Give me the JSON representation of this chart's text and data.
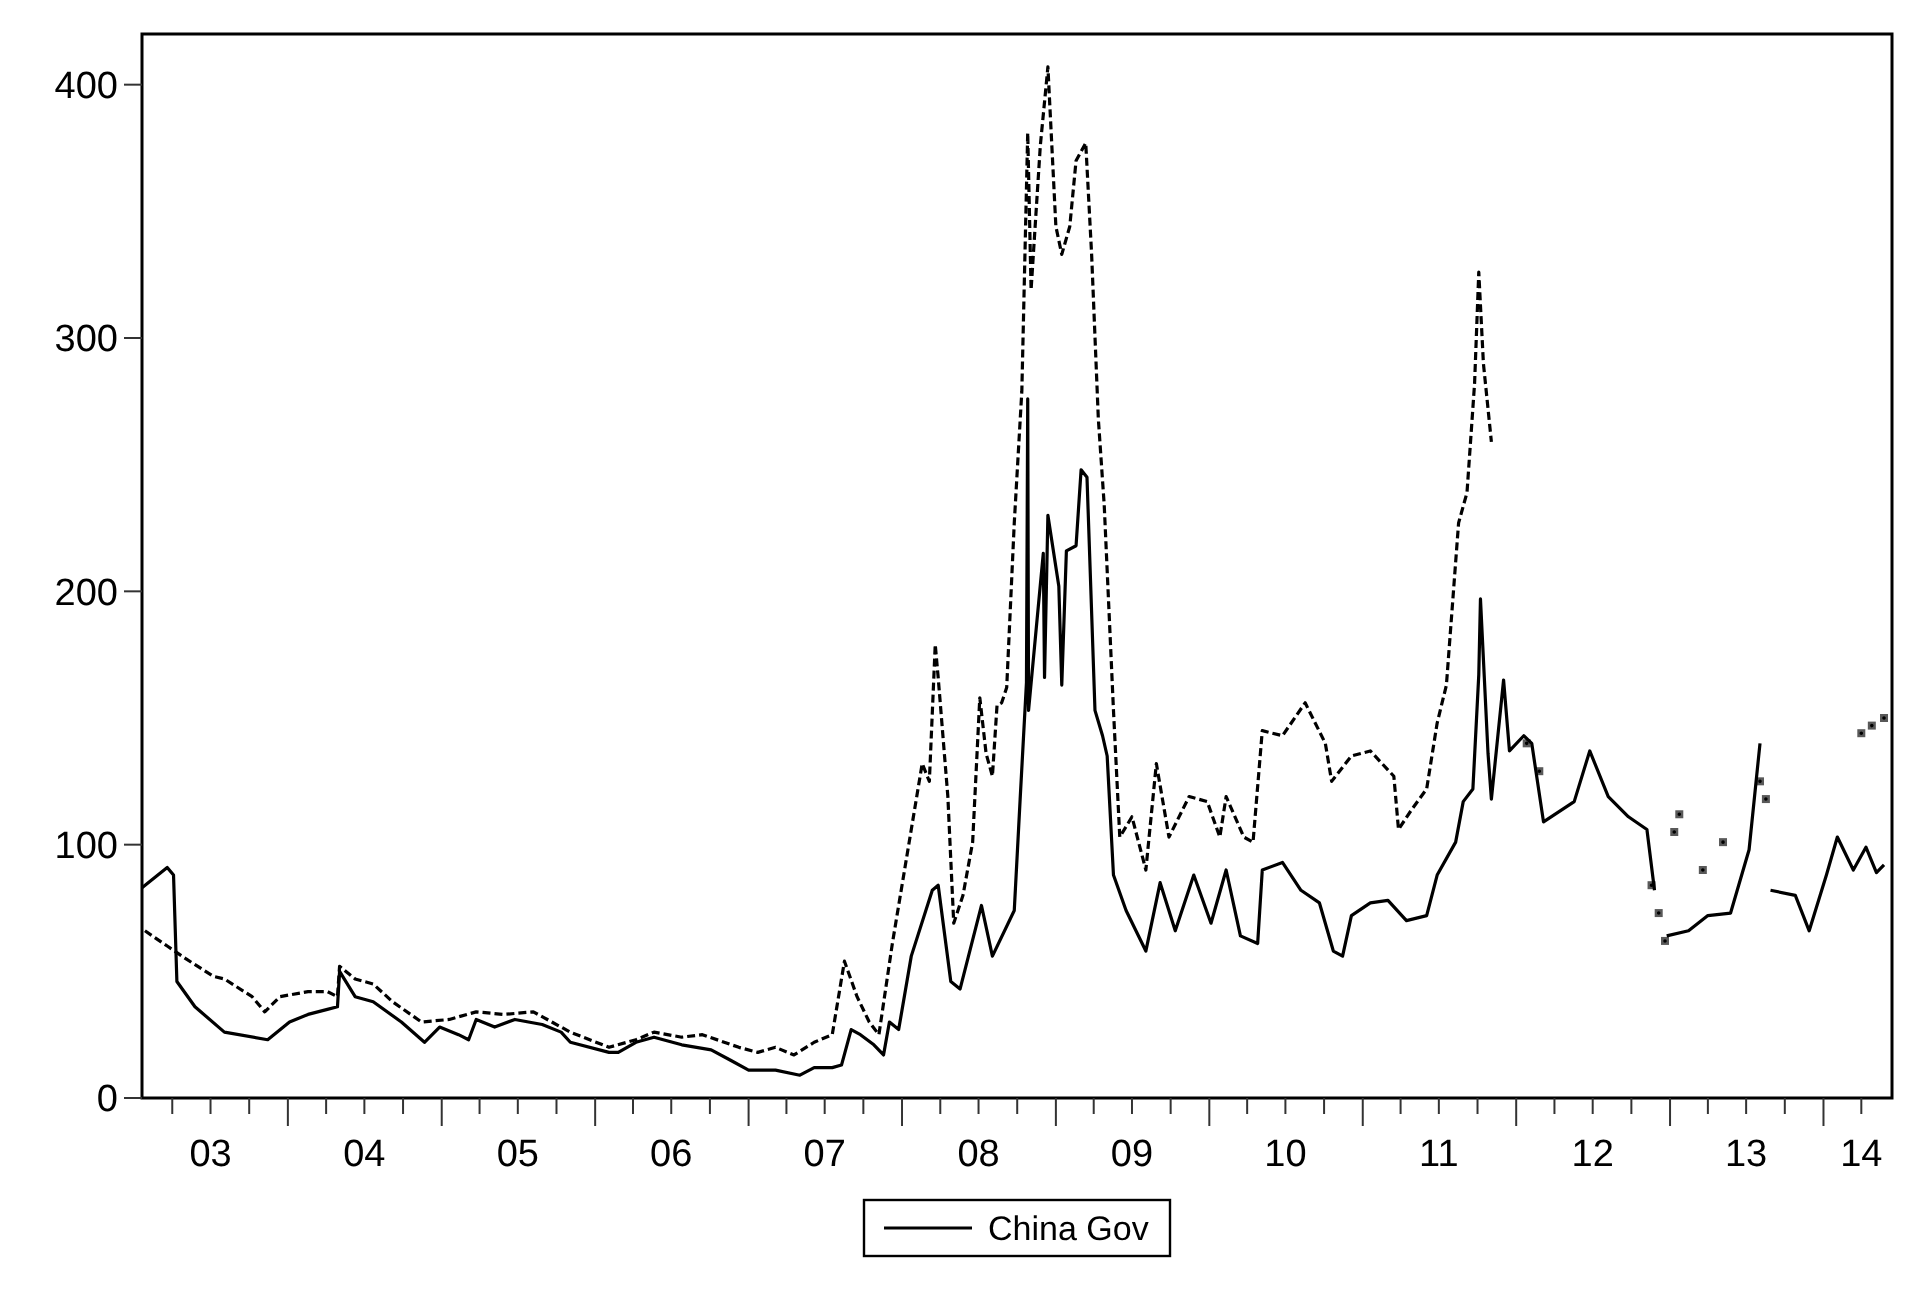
{
  "chart_data": {
    "type": "line",
    "xlim": [
      "2003-01-19",
      "2014-06-13"
    ],
    "ylim": [
      0,
      420
    ],
    "yticks": [
      0,
      100,
      200,
      300,
      400
    ],
    "xticks": [
      {
        "value": "2003-04-01",
        "label": null
      },
      {
        "value": "2003-07-01",
        "label": "03"
      },
      {
        "value": "2003-10-01",
        "label": null
      },
      {
        "value": "2004-01-01",
        "label": null
      },
      {
        "value": "2004-04-01",
        "label": null
      },
      {
        "value": "2004-07-01",
        "label": "04"
      },
      {
        "value": "2004-10-01",
        "label": null
      },
      {
        "value": "2005-01-01",
        "label": null
      },
      {
        "value": "2005-04-01",
        "label": null
      },
      {
        "value": "2005-07-01",
        "label": "05"
      },
      {
        "value": "2005-10-01",
        "label": null
      },
      {
        "value": "2006-01-01",
        "label": null
      },
      {
        "value": "2006-04-01",
        "label": null
      },
      {
        "value": "2006-07-01",
        "label": "06"
      },
      {
        "value": "2006-10-01",
        "label": null
      },
      {
        "value": "2007-01-01",
        "label": null
      },
      {
        "value": "2007-04-01",
        "label": null
      },
      {
        "value": "2007-07-01",
        "label": "07"
      },
      {
        "value": "2007-10-01",
        "label": null
      },
      {
        "value": "2008-01-01",
        "label": null
      },
      {
        "value": "2008-04-01",
        "label": null
      },
      {
        "value": "2008-07-01",
        "label": "08"
      },
      {
        "value": "2008-10-01",
        "label": null
      },
      {
        "value": "2009-01-01",
        "label": null
      },
      {
        "value": "2009-04-01",
        "label": null
      },
      {
        "value": "2009-07-01",
        "label": "09"
      },
      {
        "value": "2009-10-01",
        "label": null
      },
      {
        "value": "2010-01-01",
        "label": null
      },
      {
        "value": "2010-04-01",
        "label": null
      },
      {
        "value": "2010-07-01",
        "label": "10"
      },
      {
        "value": "2010-10-01",
        "label": null
      },
      {
        "value": "2011-01-01",
        "label": null
      },
      {
        "value": "2011-04-01",
        "label": null
      },
      {
        "value": "2011-07-01",
        "label": "11"
      },
      {
        "value": "2011-10-01",
        "label": null
      },
      {
        "value": "2012-01-01",
        "label": null
      },
      {
        "value": "2012-04-01",
        "label": null
      },
      {
        "value": "2012-07-01",
        "label": "12"
      },
      {
        "value": "2012-10-01",
        "label": null
      },
      {
        "value": "2013-01-01",
        "label": null
      },
      {
        "value": "2013-04-01",
        "label": null
      },
      {
        "value": "2013-07-01",
        "label": "13"
      },
      {
        "value": "2013-10-01",
        "label": null
      },
      {
        "value": "2014-01-01",
        "label": null
      },
      {
        "value": "2014-04-01",
        "label": "14"
      }
    ],
    "legend": "bottom",
    "series": [
      {
        "name": "China Gov",
        "color": "#000000",
        "line_style": "solid",
        "x": [
          "2003-01-19",
          "2003-03-20",
          "2003-04-04",
          "2003-04-12",
          "2003-05-25",
          "2003-08-03",
          "2003-11-14",
          "2004-01-05",
          "2004-02-18",
          "2004-04-04",
          "2004-04-28",
          "2004-05-03",
          "2004-06-09",
          "2004-07-22",
          "2004-09-27",
          "2004-11-21",
          "2004-12-27",
          "2005-02-10",
          "2005-03-06",
          "2005-03-24",
          "2005-05-07",
          "2005-06-24",
          "2005-08-28",
          "2005-10-12",
          "2005-11-03",
          "2006-02-03",
          "2006-02-25",
          "2006-04-08",
          "2006-05-21",
          "2006-07-26",
          "2006-10-04",
          "2006-11-18",
          "2007-01-01",
          "2007-03-06",
          "2007-05-03",
          "2007-06-06",
          "2007-07-19",
          "2007-08-10",
          "2007-09-02",
          "2007-09-24",
          "2007-10-26",
          "2007-11-18",
          "2007-12-02",
          "2007-12-24",
          "2008-01-23",
          "2008-03-13",
          "2008-03-27",
          "2008-04-26",
          "2008-05-18",
          "2008-07-08",
          "2008-08-03",
          "2008-09-24",
          "2008-10-08",
          "2008-10-23",
          "2008-10-26",
          "2008-10-28",
          "2008-12-02",
          "2008-12-05",
          "2008-12-13",
          "2009-01-08",
          "2009-01-15",
          "2009-01-26",
          "2009-02-18",
          "2009-03-02",
          "2009-03-16",
          "2009-04-04",
          "2009-04-22",
          "2009-05-03",
          "2009-05-18",
          "2009-06-17",
          "2009-08-03",
          "2009-09-06",
          "2009-10-12",
          "2009-11-25",
          "2010-01-05",
          "2010-02-10",
          "2010-03-16",
          "2010-04-26",
          "2010-05-07",
          "2010-06-24",
          "2010-08-07",
          "2010-09-20",
          "2010-10-23",
          "2010-11-14",
          "2010-12-05",
          "2011-01-19",
          "2011-03-02",
          "2011-04-15",
          "2011-06-02",
          "2011-06-27",
          "2011-08-10",
          "2011-08-28",
          "2011-09-20",
          "2011-10-04",
          "2011-10-08",
          "2011-10-26",
          "2011-11-03",
          "2011-12-02",
          "2011-12-16",
          "2012-01-19",
          "2012-02-07",
          "2012-03-06",
          "2012-05-18",
          "2012-06-24",
          "2012-08-07",
          "2012-09-24",
          "2012-11-07",
          "2012-11-25",
          "2012-12-09",
          "2012-12-24",
          "2013-02-14",
          "2013-04-01",
          "2013-05-25",
          "2013-07-08",
          "2013-08-03",
          "2013-08-14",
          "2013-08-28",
          "2013-10-26",
          "2013-11-28",
          "2014-01-08",
          "2014-02-03",
          "2014-03-13",
          "2014-04-12",
          "2014-05-07",
          "2014-05-25"
        ],
        "values": [
          83,
          91,
          88,
          46,
          36,
          26,
          23,
          30,
          33,
          35,
          36,
          50,
          40,
          38,
          30,
          22,
          28,
          25,
          23,
          31,
          28,
          31,
          29,
          26,
          22,
          18,
          18,
          22,
          24,
          21,
          19,
          15,
          11,
          11,
          9,
          12,
          12,
          13,
          27,
          25,
          21,
          17,
          30,
          27,
          56,
          82,
          84,
          46,
          43,
          76,
          56,
          74,
          118,
          164,
          276,
          153,
          215,
          166,
          230,
          202,
          163,
          216,
          218,
          248,
          245,
          153,
          143,
          135,
          88,
          74,
          58,
          85,
          66,
          88,
          69,
          90,
          64,
          61,
          90,
          93,
          82,
          77,
          58,
          56,
          72,
          77,
          78,
          70,
          72,
          88,
          101,
          117,
          122,
          167,
          197,
          136,
          118,
          165,
          137,
          143,
          140,
          109,
          117,
          137,
          119,
          111,
          106,
          82,
          null,
          64,
          66,
          72,
          73,
          98,
          140,
          null,
          82,
          80,
          66,
          88,
          103,
          90,
          99,
          89,
          92
        ]
      },
      {
        "color": "#000000",
        "line_style": "dashed",
        "x": [
          "2003-01-26",
          "2003-03-20",
          "2003-05-03",
          "2003-07-08",
          "2003-08-03",
          "2003-10-08",
          "2003-11-07",
          "2003-12-13",
          "2004-02-18",
          "2004-04-04",
          "2004-04-28",
          "2004-05-03",
          "2004-06-09",
          "2004-07-22",
          "2004-09-06",
          "2004-11-14",
          "2005-01-19",
          "2005-03-24",
          "2005-05-28",
          "2005-08-07",
          "2005-09-20",
          "2005-11-03",
          "2006-02-03",
          "2006-04-08",
          "2006-05-21",
          "2006-07-26",
          "2006-09-13",
          "2006-12-09",
          "2007-01-23",
          "2007-03-06",
          "2007-04-19",
          "2007-06-06",
          "2007-07-19",
          "2007-08-17",
          "2007-09-16",
          "2007-10-15",
          "2007-11-07",
          "2007-12-09",
          "2008-01-15",
          "2008-02-18",
          "2008-03-06",
          "2008-03-20",
          "2008-03-27",
          "2008-04-19",
          "2008-05-03",
          "2008-05-25",
          "2008-06-17",
          "2008-07-04",
          "2008-07-19",
          "2008-08-03",
          "2008-08-14",
          "2008-08-25",
          "2008-09-06",
          "2008-09-24",
          "2008-10-12",
          "2008-10-26",
          "2008-11-03",
          "2008-11-25",
          "2008-12-13",
          "2009-01-01",
          "2009-01-15",
          "2009-02-03",
          "2009-02-18",
          "2009-03-13",
          "2009-03-27",
          "2009-04-12",
          "2009-04-26",
          "2009-05-18",
          "2009-06-02",
          "2009-07-01",
          "2009-08-03",
          "2009-08-28",
          "2009-09-27",
          "2009-11-14",
          "2009-12-27",
          "2010-01-26",
          "2010-02-10",
          "2010-03-24",
          "2010-04-15",
          "2010-05-07",
          "2010-06-24",
          "2010-08-17",
          "2010-10-04",
          "2010-10-19",
          "2010-12-05",
          "2011-01-19",
          "2011-03-16",
          "2011-03-27",
          "2011-04-28",
          "2011-06-02",
          "2011-06-27",
          "2011-07-19",
          "2011-08-17",
          "2011-09-06",
          "2011-09-24",
          "2011-10-04",
          "2011-10-15",
          "2011-11-03",
          "2011-11-25",
          "2012-01-26",
          "2012-02-10",
          "2012-02-25",
          "2012-07-01",
          "2012-11-18",
          "2012-11-25",
          "2012-12-05",
          "2012-12-12",
          "2012-12-20",
          "2013-01-01",
          "2013-01-11",
          "2013-01-17",
          "2013-01-23",
          "2013-02-21",
          "2013-03-20",
          "2013-04-12",
          "2013-05-07",
          "2013-07-01",
          "2013-08-03",
          "2013-08-10",
          "2013-08-17",
          "2014-01-01",
          "2014-04-01",
          "2014-04-14",
          "2014-04-26",
          "2014-05-10",
          "2014-05-25"
        ],
        "values": [
          66,
          60,
          55,
          48,
          47,
          40,
          34,
          40,
          42,
          42,
          40,
          52,
          47,
          45,
          38,
          30,
          31,
          34,
          33,
          34,
          30,
          26,
          20,
          23,
          26,
          24,
          25,
          20,
          18,
          20,
          17,
          22,
          25,
          54,
          40,
          30,
          25,
          61,
          98,
          132,
          125,
          179,
          166,
          119,
          69,
          80,
          101,
          158,
          136,
          127,
          155,
          156,
          162,
          227,
          279,
          381,
          319,
          376,
          407,
          344,
          333,
          344,
          370,
          377,
          333,
          268,
          234,
          153,
          103,
          111,
          90,
          132,
          103,
          119,
          117,
          103,
          119,
          103,
          101,
          145,
          143,
          156,
          140,
          125,
          135,
          137,
          127,
          106,
          114,
          122,
          148,
          163,
          227,
          239,
          282,
          326,
          290,
          259,
          null,
          140,
          null,
          129,
          null,
          84,
          null,
          73,
          null,
          62,
          null,
          105,
          null,
          112,
          null,
          90,
          null,
          101,
          null,
          125,
          null,
          118,
          null,
          144,
          null,
          147,
          null,
          150
        ]
      }
    ]
  }
}
